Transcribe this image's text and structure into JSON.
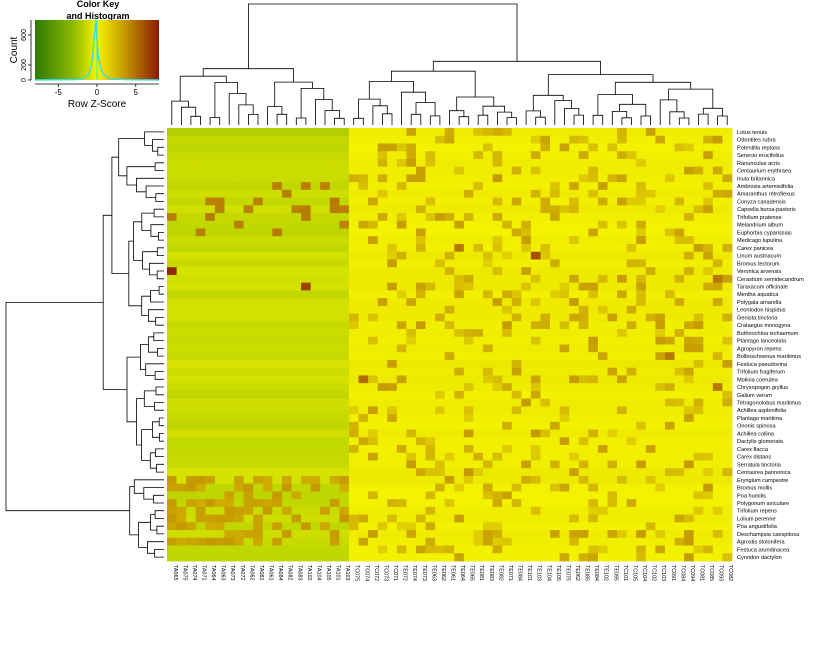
{
  "chart_data": {
    "type": "heatmap",
    "color_key": {
      "title_line1": "Color Key",
      "title_line2": "and Histogram",
      "ylabel": "Count",
      "xlabel": "Row Z-Score",
      "x_ticks": [
        "-5",
        "0",
        "5"
      ],
      "y_ticks": [
        "0",
        "200",
        "600"
      ],
      "xlim": [
        -8,
        8
      ],
      "ylim": [
        0,
        800
      ],
      "histogram": [
        [
          -2.5,
          5
        ],
        [
          -1.6,
          25
        ],
        [
          -1.0,
          90
        ],
        [
          -0.6,
          260
        ],
        [
          -0.35,
          560
        ],
        [
          -0.15,
          800
        ],
        [
          0.0,
          540
        ],
        [
          0.2,
          300
        ],
        [
          0.5,
          150
        ],
        [
          0.9,
          70
        ],
        [
          1.4,
          30
        ],
        [
          2.2,
          12
        ],
        [
          3.5,
          5
        ],
        [
          5.0,
          2
        ]
      ],
      "color_stops": [
        "#2e7a06",
        "#8ab800",
        "#f4f400",
        "#c9a200",
        "#8b1a00"
      ]
    },
    "columns": [
      "TA065",
      "TA075",
      "TA074",
      "TA071",
      "TA064",
      "TA063",
      "TA073",
      "TA072",
      "TA062",
      "TA081",
      "TA061",
      "TA084",
      "TA082",
      "TA083",
      "TA102",
      "TA104",
      "TA105",
      "TA101",
      "TA103",
      "TC075",
      "TC074",
      "TC072",
      "TC073",
      "TC071",
      "TE072",
      "TE074",
      "TE073",
      "TE063",
      "TE062",
      "TE061",
      "TE064",
      "TE065",
      "TE081",
      "TE083",
      "TE082",
      "TE071",
      "TE084",
      "TE101",
      "TE103",
      "TE104",
      "TE105",
      "TE075",
      "TE062",
      "TE085",
      "TE084",
      "TE102",
      "TE095",
      "TC101",
      "TC105",
      "TC104",
      "TC102",
      "TC103",
      "TC091",
      "TC084",
      "TC094",
      "TC081",
      "TC085",
      "TC093",
      "TC082"
    ],
    "rows": [
      "Lotus tenuis",
      "Odontites rubra",
      "Potentilla reptans",
      "Senecio erucifolius",
      "Ranunculus acris",
      "Centaurium erythraea",
      "Inula britannica",
      "Ambrosia artemisiifolia",
      "Amaranthus retroflexus",
      "Conyza canadensis",
      "Capsella bursa-pastoris",
      "Trifolium pratense",
      "Melandrium album",
      "Euphorbia cyparissias",
      "Medicago lupulina",
      "Carex panicea",
      "Linum austriacum",
      "Bromus tectorum",
      "Veronica arvensis",
      "Cerastium semidecandrum",
      "Taraxacum officinale",
      "Mentha aquatica",
      "Polygala amarella",
      "Leontodon hispidus",
      "Genista tinctoria",
      "Crataegus monogyna",
      "Bothriochloa ischaemum",
      "Plantago lanceolata",
      "Agropyron repens",
      "Bolboschoenus maritimus",
      "Festuca pseudovina",
      "Trifolium fragiferum",
      "Molinia coerulea",
      "Chrysopogon gryllus",
      "Galium verum",
      "Tetragonolobus maritimus",
      "Achillea asplenifolia",
      "Plantago maritima",
      "Ononis spinosa",
      "Achillea collina",
      "Dactylis glomerata",
      "Carex flacca",
      "Carex distans",
      "Serratula tinctoria",
      "Centaurea pannonica",
      "Eryngium campestre",
      "Bromus mollis",
      "Poa humilis",
      "Polygonum aviculare",
      "Trifolium repens",
      "Lolium perenne",
      "Poa angustifolia",
      "Deschampsia caespitosa",
      "Agrostis stolonifera",
      "Festuca arundinacea",
      "Cynodon dactylon"
    ],
    "value_scale": "row z-score",
    "highlights": [
      {
        "row": "Veronica arvensis",
        "col": "TA065",
        "value": 7.5
      },
      {
        "row": "Veronica arvensis",
        "col": "TA065",
        "value": 7.5
      },
      {
        "row": "Taraxacum officinale",
        "col": "TA102",
        "value": 6.5
      },
      {
        "row": "Linum austriacum",
        "col": "TE103",
        "value": 6.0
      },
      {
        "row": "Bolboschoenus maritimus",
        "col": "TC091",
        "value": 4.5
      },
      {
        "row": "Molinia coerulea",
        "col": "TC074",
        "value": 5.0
      },
      {
        "row": "Chrysopogon gryllus",
        "col": "TC093",
        "value": 4.5
      },
      {
        "row": "Carex panicea",
        "col": "TE064",
        "value": 4.5
      },
      {
        "row": "Cerastium semidecandrum",
        "col": "TC093",
        "value": 4.5
      }
    ],
    "column_dendrogram": "top",
    "row_dendrogram": "left"
  }
}
